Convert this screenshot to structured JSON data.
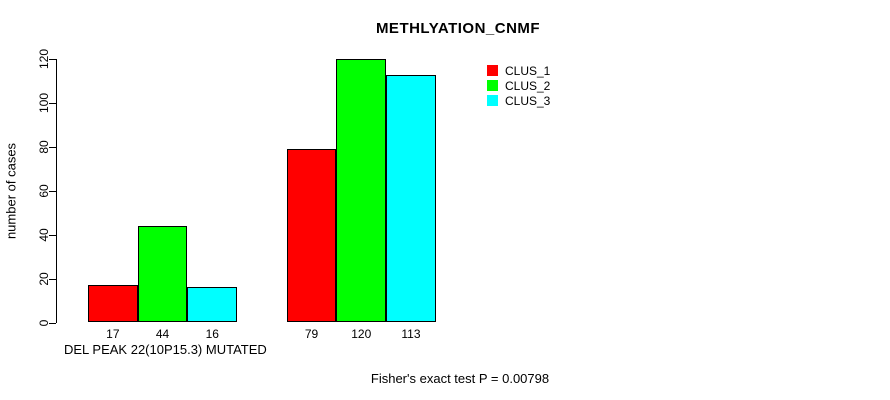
{
  "chart_data": {
    "type": "bar",
    "title": "METHLYATION_CNMF",
    "ylabel": "number of cases",
    "xlabel": "DEL PEAK 22(10P15.3) MUTATED",
    "annotation": "Fisher's exact test P = 0.00798",
    "ylim": [
      0,
      120
    ],
    "yticks": [
      0,
      20,
      40,
      60,
      80,
      100,
      120
    ],
    "grid": false,
    "legend_position": "top-right",
    "bar_value_labels_shown": true,
    "num_groups": 2,
    "series": [
      {
        "name": "CLUS_1",
        "color": "#ff0000",
        "values": [
          17,
          79
        ]
      },
      {
        "name": "CLUS_2",
        "color": "#00ff00",
        "values": [
          44,
          120
        ]
      },
      {
        "name": "CLUS_3",
        "color": "#00ffff",
        "values": [
          16,
          113
        ]
      }
    ]
  },
  "colors": {
    "axis": "#000000",
    "text": "#000000",
    "background": "#ffffff"
  }
}
